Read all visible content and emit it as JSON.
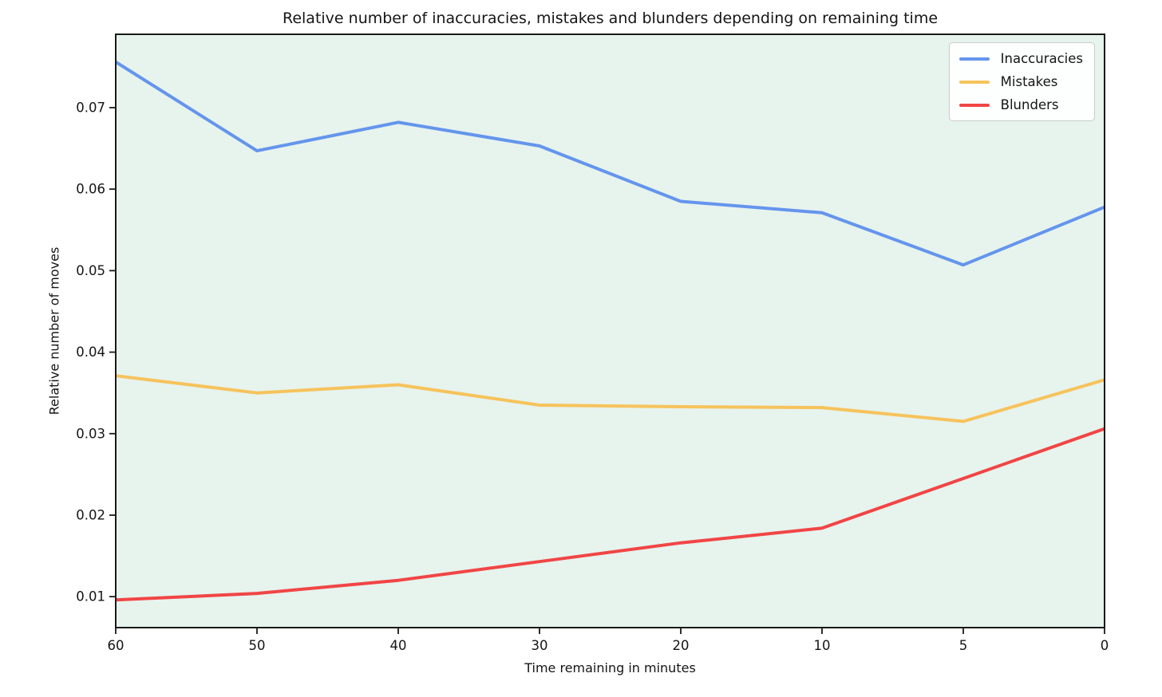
{
  "figure": {
    "background": "#ffffff",
    "plot_background": "#e7f3ed",
    "spine_color": "#1a1a1a"
  },
  "chart_data": {
    "type": "line",
    "title": "Relative number of inaccuracies, mistakes and blunders depending on remaining time",
    "xlabel": "Time remaining in minutes",
    "ylabel": "Relative number of moves",
    "categories": [
      "60",
      "50",
      "40",
      "30",
      "20",
      "10",
      "5",
      "0"
    ],
    "y_ticks": [
      "0.01",
      "0.02",
      "0.03",
      "0.04",
      "0.05",
      "0.06",
      "0.07"
    ],
    "ylim": [
      0.0062,
      0.079
    ],
    "grid": false,
    "legend_position": "upper right",
    "series": [
      {
        "name": "Inaccuracies",
        "color": "#6495ed",
        "values": [
          0.0756,
          0.0647,
          0.0682,
          0.0653,
          0.0585,
          0.0571,
          0.0507,
          0.0578
        ]
      },
      {
        "name": "Mistakes",
        "color": "#f6c35c",
        "values": [
          0.0371,
          0.035,
          0.036,
          0.0335,
          0.0333,
          0.0332,
          0.0315,
          0.0366
        ]
      },
      {
        "name": "Blunders",
        "color": "#f14545",
        "values": [
          0.0096,
          0.0104,
          0.012,
          0.0143,
          0.0166,
          0.0184,
          0.0245,
          0.0306
        ]
      }
    ]
  }
}
